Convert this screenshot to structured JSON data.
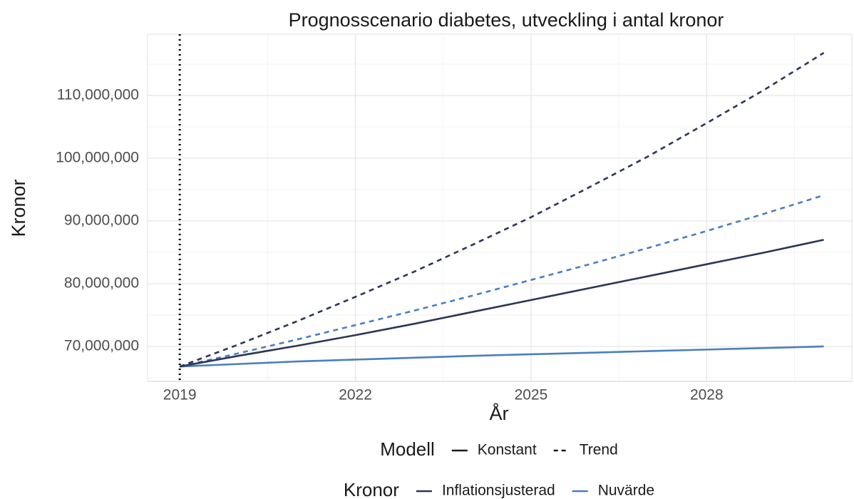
{
  "chart_data": {
    "type": "line",
    "title": "Prognosscenario diabetes, utveckling i antal kronor",
    "x_label": "År",
    "y_label": "Kronor",
    "x": [
      2019,
      2020,
      2021,
      2022,
      2023,
      2024,
      2025,
      2026,
      2027,
      2028,
      2029,
      2030
    ],
    "xlim": [
      2018.45,
      2030.48
    ],
    "xticks": [
      2019,
      2022,
      2025,
      2028
    ],
    "ylim": [
      64430000,
      119770000
    ],
    "yticks": [
      {
        "value": 70000000,
        "label": "70,000,000"
      },
      {
        "value": 80000000,
        "label": "80,000,000"
      },
      {
        "value": 90000000,
        "label": "90,000,000"
      },
      {
        "value": 100000000,
        "label": "100,000,000"
      },
      {
        "value": 110000000,
        "label": "110,000,000"
      }
    ],
    "grid": true,
    "vline": 2019,
    "legends": [
      {
        "title": "Modell",
        "entries": [
          {
            "label": "Konstant",
            "dash": "solid"
          },
          {
            "label": "Trend",
            "dash": "dashed"
          }
        ]
      },
      {
        "title": "Kronor",
        "entries": [
          {
            "label": "Inflationsjusterad",
            "color": "#2d3657"
          },
          {
            "label": "Nuvärde",
            "color": "#4a7fc1"
          }
        ]
      }
    ],
    "series": [
      {
        "modell": "Konstant",
        "kronor": "Nuvärde",
        "values": [
          66800000,
          67200000,
          67600000,
          67900000,
          68200000,
          68500000,
          68750000,
          69000000,
          69250000,
          69500000,
          69750000,
          70000000
        ]
      },
      {
        "modell": "Trend",
        "kronor": "Nuvärde",
        "values": [
          66800000,
          68900000,
          71100000,
          73400000,
          75700000,
          78100000,
          80600000,
          83100000,
          85700000,
          88400000,
          91200000,
          94100000
        ]
      },
      {
        "modell": "Konstant",
        "kronor": "Inflationsjusterad",
        "values": [
          66800000,
          68500000,
          70100000,
          71800000,
          73600000,
          75500000,
          77400000,
          79300000,
          81200000,
          83100000,
          85000000,
          87000000
        ]
      },
      {
        "modell": "Trend",
        "kronor": "Inflationsjusterad",
        "values": [
          66800000,
          70300000,
          74000000,
          77900000,
          81900000,
          86200000,
          90600000,
          95400000,
          100300000,
          105600000,
          111000000,
          116800000
        ]
      }
    ]
  }
}
